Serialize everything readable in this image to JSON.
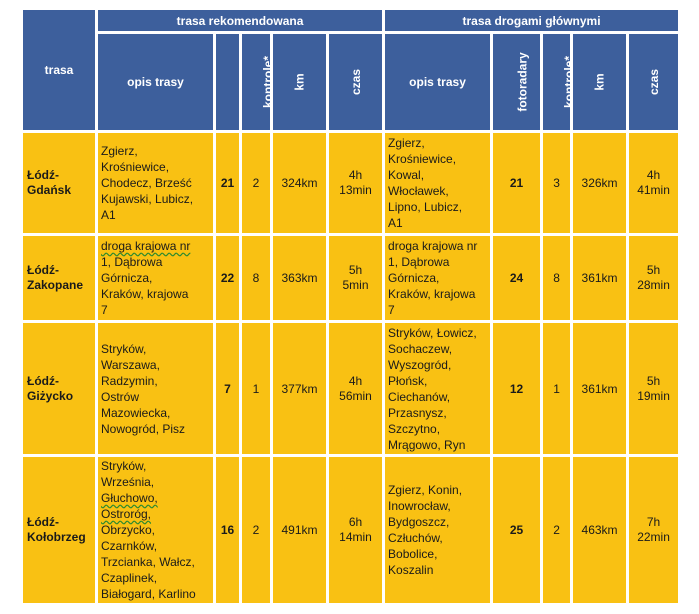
{
  "header": {
    "trasa": "trasa",
    "recommended": "trasa rekomendowana",
    "main_roads": "trasa drogami głównymi",
    "opis": "opis trasy",
    "fotoradary": "fotoradary",
    "kontrole": "kontrole*",
    "km": "km",
    "czas": "czas"
  },
  "rows": [
    {
      "name": [
        "Łódź-",
        "Gdańsk"
      ],
      "rec": {
        "desc": [
          "Zgierz,",
          "Krośniewice,",
          "Chodecz, Brześć",
          "Kujawski, Lubicz,",
          "A1"
        ],
        "fotoradary": "21",
        "kontrole": "2",
        "km": "324km",
        "czas": [
          "4h",
          "13min"
        ]
      },
      "main": {
        "desc": [
          "Zgierz,",
          "Krośniewice,",
          "Kowal,",
          "Włocławek,",
          "Lipno, Lubicz,",
          "A1"
        ],
        "fotoradary": "21",
        "kontrole": "3",
        "km": "326km",
        "czas": [
          "4h",
          "41min"
        ]
      }
    },
    {
      "name": [
        "Łódź-",
        "Zakopane"
      ],
      "rec": {
        "desc": [
          "droga krajowa nr",
          "1, Dąbrowa",
          "Górnicza,",
          "Kraków, krajowa",
          "7"
        ],
        "fotoradary": "22",
        "kontrole": "8",
        "km": "363km",
        "czas": [
          "5h",
          "5min"
        ]
      },
      "main": {
        "desc": [
          "droga krajowa nr",
          "1, Dąbrowa",
          "Górnicza,",
          "Kraków, krajowa",
          "7"
        ],
        "fotoradary": "24",
        "kontrole": "8",
        "km": "361km",
        "czas": [
          "5h",
          "28min"
        ]
      }
    },
    {
      "name": [
        "Łódź-",
        "Giżycko"
      ],
      "rec": {
        "desc": [
          "Stryków,",
          "Warszawa,",
          "Radzymin,",
          "Ostrów",
          "Mazowiecka,",
          "Nowogród, Pisz"
        ],
        "fotoradary": "7",
        "kontrole": "1",
        "km": "377km",
        "czas": [
          "4h",
          "56min"
        ]
      },
      "main": {
        "desc": [
          "Stryków, Łowicz,",
          "Sochaczew,",
          "Wyszogród,",
          "Płońsk,",
          "Ciechanów,",
          "Przasnysz,",
          "Szczytno,",
          "Mrągowo, Ryn"
        ],
        "fotoradary": "12",
        "kontrole": "1",
        "km": "361km",
        "czas": [
          "5h",
          "19min"
        ]
      }
    },
    {
      "name": [
        "Łódź-",
        "Kołobrzeg"
      ],
      "rec": {
        "desc": [
          "Stryków,",
          "Września,",
          "Głuchowo,",
          "Ostroróg,",
          "Obrzycko,",
          "Czarnków,",
          "Trzcianka, Wałcz,",
          "Czaplinek,",
          "Białogard, Karlino"
        ],
        "fotoradary": "16",
        "kontrole": "2",
        "km": "491km",
        "czas": [
          "6h",
          "14min"
        ]
      },
      "main": {
        "desc": [
          "Zgierz, Konin,",
          "Inowrocław,",
          "Bydgoszcz,",
          "Człuchów,",
          "Bobolice,",
          "Koszalin"
        ],
        "fotoradary": "25",
        "kontrole": "2",
        "km": "463km",
        "czas": [
          "7h",
          "22min"
        ]
      }
    }
  ]
}
